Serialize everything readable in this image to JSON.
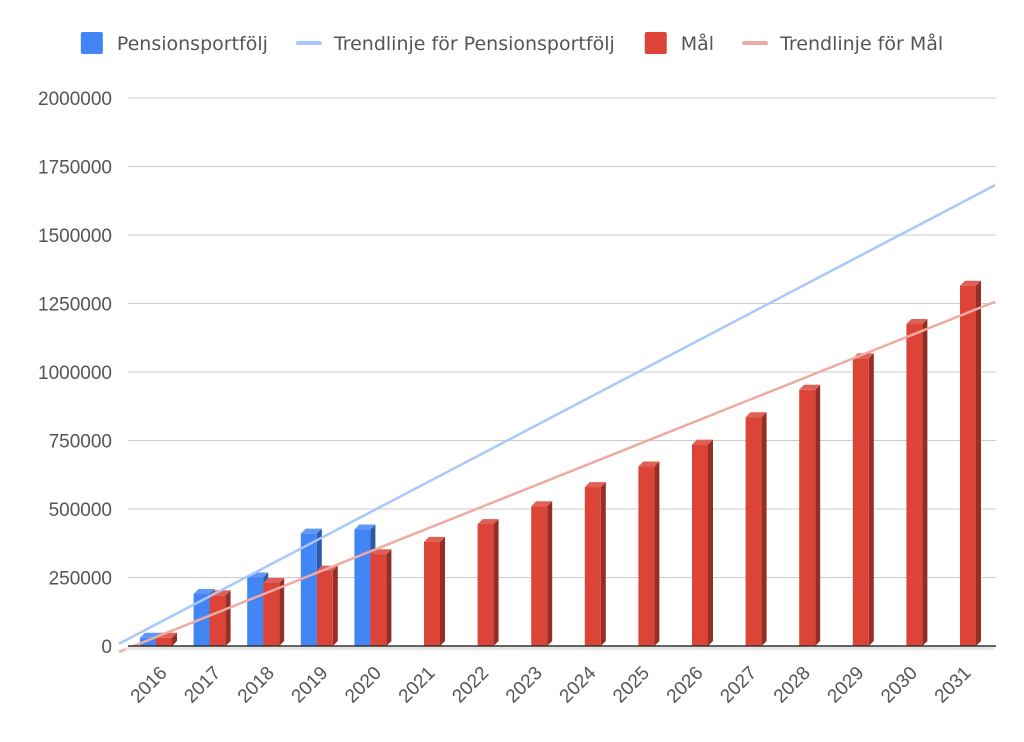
{
  "chart_data": {
    "type": "bar",
    "categories": [
      "2016",
      "2017",
      "2018",
      "2019",
      "2020",
      "2021",
      "2022",
      "2023",
      "2024",
      "2025",
      "2026",
      "2027",
      "2028",
      "2029",
      "2030",
      "2031"
    ],
    "series": [
      {
        "name": "Pensionsportfölj",
        "color": "#4285f4",
        "values": [
          30000,
          190000,
          250000,
          410000,
          425000,
          null,
          null,
          null,
          null,
          null,
          null,
          null,
          null,
          null,
          null,
          null
        ]
      },
      {
        "name": "Mål",
        "color": "#db4437",
        "values": [
          30000,
          185000,
          230000,
          275000,
          335000,
          380000,
          445000,
          510000,
          580000,
          655000,
          735000,
          835000,
          935000,
          1050000,
          1175000,
          1315000
        ]
      }
    ],
    "trendlines": [
      {
        "name": "Trendlinje för Pensionsportfölj",
        "color": "#a8c7fa",
        "start_value": 10000,
        "end_value": 1680000
      },
      {
        "name": "Trendlinje för Mål",
        "color": "#f0aaa4",
        "start_value": -20000,
        "end_value": 1255000
      }
    ],
    "yticks": [
      "0",
      "250000",
      "500000",
      "750000",
      "1000000",
      "1250000",
      "1500000",
      "1750000",
      "2000000"
    ],
    "ylim": [
      0,
      2000000
    ],
    "grid": true,
    "legend_position": "top",
    "style": "3d-bars"
  }
}
